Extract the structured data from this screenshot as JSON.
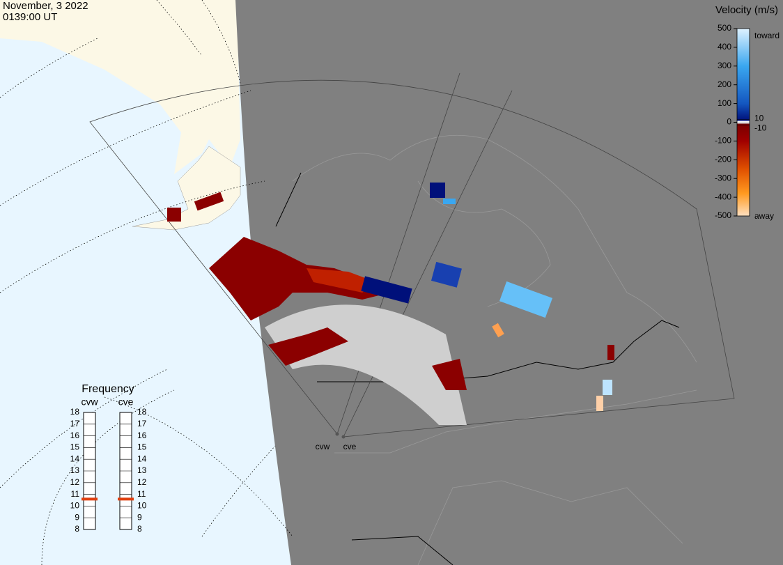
{
  "header": {
    "date": "November, 3 2022",
    "time": "0139:00 UT"
  },
  "velocity_scale": {
    "title": "Velocity (m/s)",
    "range": [
      -500,
      500
    ],
    "ticks": [
      500,
      400,
      300,
      200,
      100,
      0,
      -100,
      -200,
      -300,
      -400,
      -500
    ],
    "near_zero": [
      10,
      -10
    ],
    "toward": "toward",
    "away": "away"
  },
  "frequency": {
    "title": "Frequency",
    "range": [
      8,
      18
    ],
    "ticks": [
      18,
      17,
      16,
      15,
      14,
      13,
      12,
      11,
      10,
      9,
      8
    ],
    "radars": [
      {
        "name": "cvw",
        "value": 10.6
      },
      {
        "name": "cve",
        "value": 10.6
      }
    ]
  },
  "map_labels": [
    "cvw",
    "cve"
  ]
}
